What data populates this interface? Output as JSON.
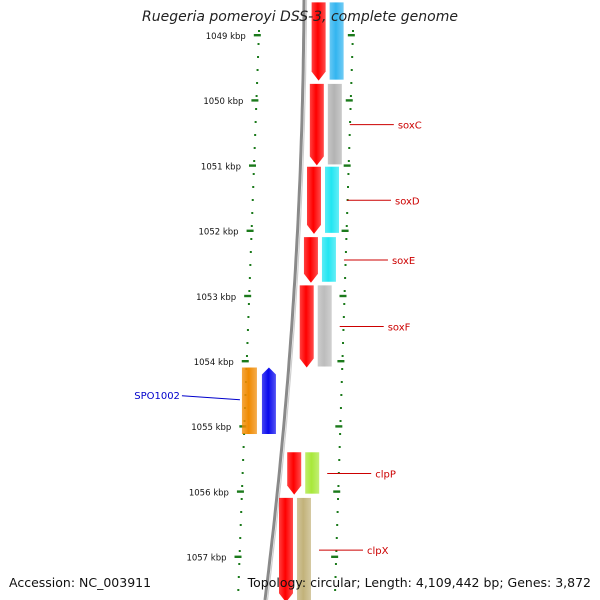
{
  "title": "Ruegeria pomeroyi DSS-3, complete genome",
  "accession": "Accession: NC_003911",
  "topology": "Topology: circular; Length: 4,109,442 bp; Genes: 3,872",
  "ruler": {
    "unit": "kbp",
    "ticks": [
      "1049 kbp",
      "1050 kbp",
      "1051 kbp",
      "1052 kbp",
      "1053 kbp",
      "1054 kbp",
      "1055 kbp",
      "1056 kbp",
      "1057 kbp"
    ]
  },
  "colors": {
    "backbone": "#8a8a8a",
    "tick": "#1b7a1b",
    "gene_cds": "#ff0000",
    "forward_label": "#0000cc",
    "reverse_label": "#cc0000"
  },
  "genes": {
    "reverse": [
      {
        "label": "",
        "start_kbp": 1048.5,
        "end_kbp": 1049.7,
        "track_color": "#33b5f0"
      },
      {
        "label": "soxC",
        "start_kbp": 1049.75,
        "end_kbp": 1051.0,
        "track_color": "#b3b3b3"
      },
      {
        "label": "soxD",
        "start_kbp": 1051.02,
        "end_kbp": 1052.05,
        "track_color": "#22e6f2"
      },
      {
        "label": "soxE",
        "start_kbp": 1052.1,
        "end_kbp": 1052.8,
        "track_color": "#22e6f2"
      },
      {
        "label": "soxF",
        "start_kbp": 1052.84,
        "end_kbp": 1054.1,
        "track_color": "#bcbcbc"
      },
      {
        "label": "clpP",
        "start_kbp": 1055.4,
        "end_kbp": 1056.05,
        "track_color": "#a8e83a"
      },
      {
        "label": "clpX",
        "start_kbp": 1056.1,
        "end_kbp": 1057.7,
        "track_color": "#c2b27a"
      }
    ],
    "forward": [
      {
        "label": "SPO1002",
        "start_kbp": 1054.1,
        "end_kbp": 1055.12,
        "track_color": "#f08a00",
        "cds_color": "#0a0aee"
      }
    ]
  }
}
